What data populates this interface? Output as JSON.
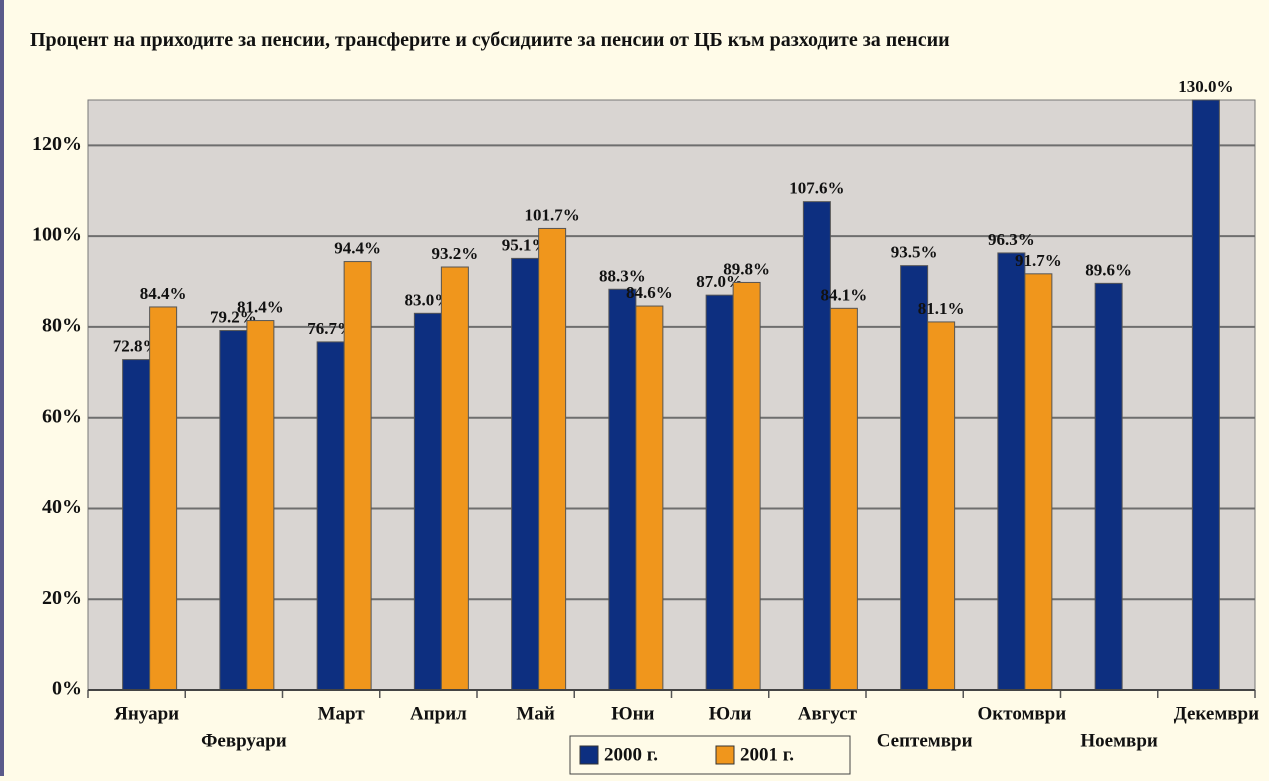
{
  "chart_data": {
    "type": "bar",
    "title": "Процент на приходите за пенсии, трансферите и субсидиите за пенсии от ЦБ към разходите за пенсии",
    "categories": [
      "Януари",
      "Февруари",
      "Март",
      "Април",
      "Май",
      "Юни",
      "Юли",
      "Август",
      "Септември",
      "Октомври",
      "Ноември",
      "Декември"
    ],
    "series": [
      {
        "name": "2000 г.",
        "color": "#0d2f80",
        "values": [
          72.8,
          79.2,
          76.7,
          83.0,
          95.1,
          88.3,
          87.0,
          107.6,
          93.5,
          96.3,
          89.6,
          130.0
        ],
        "value_labels": [
          "72.8%",
          "79.2%",
          "76.7%",
          "83.0%",
          "95.1%",
          "88.3%",
          "87.0%",
          "107.6%",
          "93.5%",
          "96.3%",
          "89.6%",
          "130.0%"
        ]
      },
      {
        "name": "2001 г.",
        "color": "#f0961c",
        "values": [
          84.4,
          81.4,
          94.4,
          93.2,
          101.7,
          84.6,
          89.8,
          84.1,
          81.1,
          91.7,
          null,
          null
        ],
        "value_labels": [
          "84.4%",
          "81.4%",
          "94.4%",
          "93.2%",
          "101.7%",
          "84.6%",
          "89.8%",
          "84.1%",
          "81.1%",
          "91.7%",
          null,
          null
        ]
      }
    ],
    "ylim": [
      0,
      130
    ],
    "yticks": [
      {
        "value": 0,
        "label": "0%"
      },
      {
        "value": 20,
        "label": "20%"
      },
      {
        "value": 40,
        "label": "40%"
      },
      {
        "value": 60,
        "label": "60%"
      },
      {
        "value": 80,
        "label": "80%"
      },
      {
        "value": 100,
        "label": "100%"
      },
      {
        "value": 120,
        "label": "120%"
      }
    ],
    "grid": true,
    "legend": "bottom"
  }
}
